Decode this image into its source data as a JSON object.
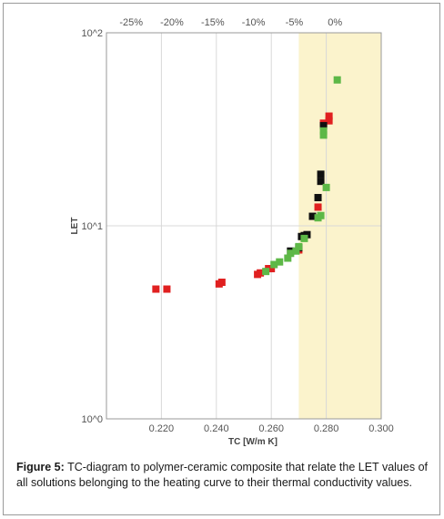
{
  "chart_data": {
    "type": "scatter",
    "xlabel": "TC [W/m K]",
    "ylabel": "LET",
    "x_scale": "linear",
    "y_scale": "log",
    "xlim": [
      0.2,
      0.3
    ],
    "ylim": [
      1,
      100
    ],
    "x_ticks": [
      "0.220",
      "0.240",
      "0.260",
      "0.280",
      "0.300"
    ],
    "y_ticks": [
      "10^0",
      "10^1",
      "10^2"
    ],
    "top_ticks": [
      "-25%",
      "-20%",
      "-15%",
      "-10%",
      "-5%",
      "0%"
    ],
    "highlight_band": {
      "x_from": 0.27,
      "x_to": 0.3,
      "color": "#fbf3cc"
    },
    "grid": true,
    "colors": {
      "red": "#e02020",
      "black": "#101010",
      "green": "#5db847"
    },
    "series": [
      {
        "color": "red",
        "points": [
          [
            0.218,
            4.7
          ],
          [
            0.222,
            4.7
          ],
          [
            0.241,
            5.0
          ],
          [
            0.242,
            5.1
          ],
          [
            0.255,
            5.6
          ],
          [
            0.256,
            5.7
          ],
          [
            0.259,
            6.0
          ],
          [
            0.26,
            6.0
          ],
          [
            0.27,
            7.5
          ],
          [
            0.277,
            12.5
          ],
          [
            0.279,
            34
          ],
          [
            0.281,
            35
          ],
          [
            0.281,
            37
          ]
        ]
      },
      {
        "color": "black",
        "points": [
          [
            0.267,
            7.4
          ],
          [
            0.27,
            7.7
          ],
          [
            0.271,
            8.8
          ],
          [
            0.272,
            8.9
          ],
          [
            0.273,
            9.0
          ],
          [
            0.275,
            11.2
          ],
          [
            0.277,
            14
          ],
          [
            0.278,
            17
          ],
          [
            0.278,
            18.5
          ],
          [
            0.279,
            33
          ]
        ]
      },
      {
        "color": "green",
        "points": [
          [
            0.258,
            5.8
          ],
          [
            0.261,
            6.3
          ],
          [
            0.263,
            6.5
          ],
          [
            0.266,
            6.8
          ],
          [
            0.267,
            7.2
          ],
          [
            0.269,
            7.4
          ],
          [
            0.27,
            7.8
          ],
          [
            0.272,
            8.6
          ],
          [
            0.277,
            11.0
          ],
          [
            0.278,
            11.3
          ],
          [
            0.28,
            15.8
          ],
          [
            0.279,
            29.5
          ],
          [
            0.279,
            31.0
          ],
          [
            0.284,
            57
          ]
        ]
      }
    ]
  },
  "caption": {
    "label": "Figure 5:",
    "text": "TC-diagram to polymer-ceramic composite that relate the LET values of all solutions belonging to the heating curve to their thermal conductivity values."
  }
}
